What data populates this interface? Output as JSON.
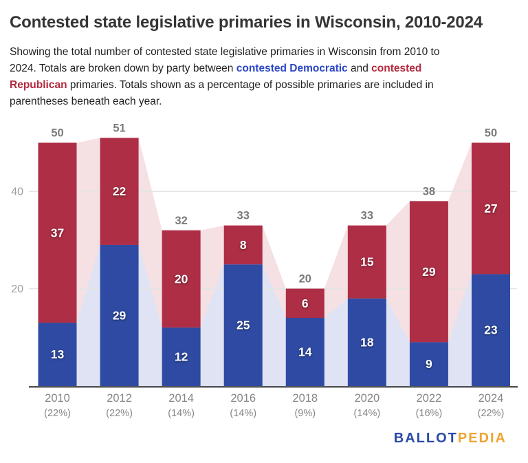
{
  "chart": {
    "title": "Contested state legislative primaries in Wisconsin, 2010-2024",
    "subtitle_segments": [
      {
        "text": "Showing the total number of contested state legislative primaries in Wisconsin from 2010 to",
        "style": "plain"
      },
      {
        "br": true
      },
      {
        "text": "2024. Totals are broken down by party between ",
        "style": "plain"
      },
      {
        "text": "contested Democratic",
        "style": "dem"
      },
      {
        "text": " and ",
        "style": "plain"
      },
      {
        "text": "contested",
        "style": "rep"
      },
      {
        "br": true
      },
      {
        "text": "Republican",
        "style": "rep"
      },
      {
        "text": " primaries. Totals shown as a percentage of possible primaries are included in",
        "style": "plain"
      },
      {
        "br": true
      },
      {
        "text": "parentheses beneath each year.",
        "style": "plain"
      }
    ]
  },
  "chart_data": {
    "type": "bar",
    "stacked": true,
    "title": "Contested state legislative primaries in Wisconsin, 2010-2024",
    "categories": [
      "2010",
      "2012",
      "2014",
      "2016",
      "2018",
      "2020",
      "2022",
      "2024"
    ],
    "category_sublabels": [
      "(22%)",
      "(22%)",
      "(14%)",
      "(14%)",
      "(9%)",
      "(14%)",
      "(16%)",
      "(22%)"
    ],
    "series": [
      {
        "name": "Contested Democratic primaries",
        "color": "#2f4aa2",
        "area_color": "#dfe3f4",
        "values": [
          13,
          29,
          12,
          25,
          14,
          18,
          9,
          23
        ]
      },
      {
        "name": "Contested Republican primaries",
        "color": "#ad2e45",
        "area_color": "#f5e0e4",
        "values": [
          37,
          22,
          20,
          8,
          6,
          15,
          29,
          27
        ]
      }
    ],
    "totals": [
      50,
      51,
      32,
      33,
      20,
      33,
      38,
      50
    ],
    "y_ticks": [
      20,
      40
    ],
    "ylim": [
      0,
      52
    ],
    "xlabel": "",
    "ylabel": "",
    "grid": true,
    "legend_position": "none",
    "background_area": "totals and Democratic values echoed as pale area bands behind bars",
    "colors": {
      "dem_bar": "#2f4aa2",
      "rep_bar": "#ad2e45",
      "dem_area": "#dfe3f4",
      "rep_area": "#f5e0e4",
      "gridline": "#e4e4e4",
      "axis_line": "#56575b",
      "tick_text": "#9e9e9e",
      "annotation_text": "#7b7b7b",
      "bar_text": "#ffffff",
      "dem_text_accent": "#2b46c4",
      "rep_text_accent": "#b3283c"
    }
  },
  "logo": {
    "ballot": "BALLOT",
    "pedia": "PEDIA",
    "ballot_color": "#2a4aa8",
    "pedia_color": "#f0a432"
  }
}
